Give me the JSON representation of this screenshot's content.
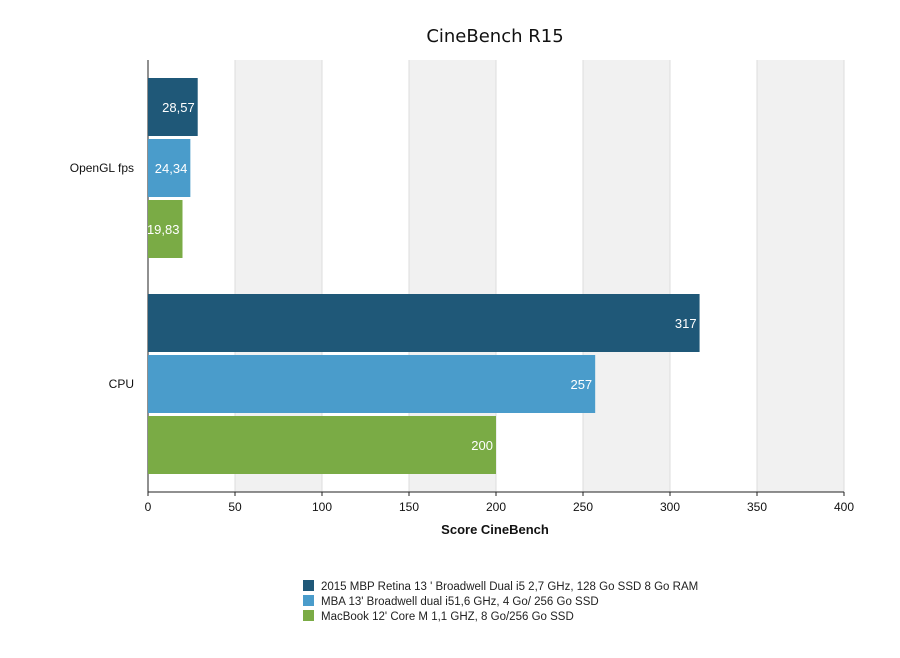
{
  "chart_data": {
    "type": "bar",
    "orientation": "horizontal",
    "title": "CineBench R15",
    "xlabel": "Score CineBench",
    "ylabel": "",
    "xlim": [
      0,
      400
    ],
    "xticks": [
      0,
      50,
      100,
      150,
      200,
      250,
      300,
      350,
      400
    ],
    "grid": true,
    "legend_position": "bottom",
    "categories": [
      "OpenGL fps",
      "CPU"
    ],
    "series": [
      {
        "name": "2015 MBP Retina 13 ' Broadwell Dual i5 2,7 GHz, 128 Go SSD 8 Go RAM",
        "color": "#1f5878",
        "values": [
          28.57,
          317
        ],
        "labels": [
          "28,57",
          "317"
        ]
      },
      {
        "name": "MBA 13' Broadwell dual i51,6 GHz, 4 Go/ 256 Go SSD",
        "color": "#4a9ccb",
        "values": [
          24.34,
          257
        ],
        "labels": [
          "24,34",
          "257"
        ]
      },
      {
        "name": "MacBook 12' Core M 1,1 GHZ, 8 Go/256 Go SSD",
        "color": "#7aab45",
        "values": [
          19.83,
          200
        ],
        "labels": [
          "19,83",
          "200"
        ]
      }
    ]
  }
}
